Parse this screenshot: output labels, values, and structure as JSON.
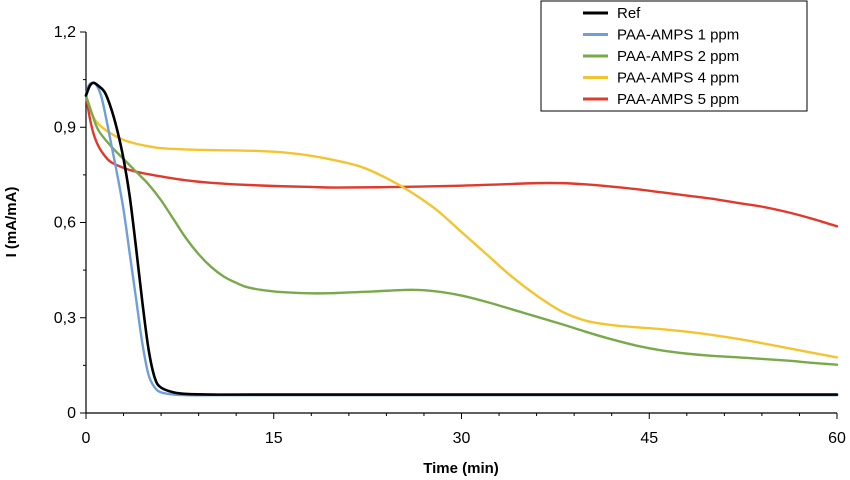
{
  "chart_data": {
    "type": "line",
    "title": "",
    "xlabel": "Time (min)",
    "ylabel": "I (mA/mA)",
    "xlim": [
      0,
      60
    ],
    "ylim": [
      0,
      1.2
    ],
    "x_ticks": [
      0,
      15,
      30,
      45,
      60
    ],
    "x_tick_labels": [
      "0",
      "15",
      "30",
      "45",
      "60"
    ],
    "y_ticks": [
      0,
      0.3,
      0.6,
      0.9,
      1.2
    ],
    "y_tick_labels": [
      "0",
      "0,3",
      "0,6",
      "0,9",
      "1,2"
    ],
    "grid": false,
    "legend_position": "top-right",
    "series": [
      {
        "name": "Ref",
        "color": "#000000",
        "points": [
          [
            0,
            1.0
          ],
          [
            0.3,
            1.03
          ],
          [
            0.6,
            1.04
          ],
          [
            1,
            1.03
          ],
          [
            1.5,
            1.01
          ],
          [
            2,
            0.96
          ],
          [
            2.5,
            0.89
          ],
          [
            3,
            0.8
          ],
          [
            3.5,
            0.68
          ],
          [
            4,
            0.52
          ],
          [
            4.5,
            0.35
          ],
          [
            5,
            0.2
          ],
          [
            5.5,
            0.11
          ],
          [
            6,
            0.08
          ],
          [
            7,
            0.065
          ],
          [
            8,
            0.06
          ],
          [
            10,
            0.058
          ],
          [
            15,
            0.058
          ],
          [
            30,
            0.058
          ],
          [
            45,
            0.058
          ],
          [
            60,
            0.058
          ]
        ]
      },
      {
        "name": "PAA-AMPS 1 ppm",
        "color": "#6f9fd8",
        "points": [
          [
            0,
            1.0
          ],
          [
            0.2,
            1.03
          ],
          [
            0.5,
            1.04
          ],
          [
            0.8,
            1.035
          ],
          [
            1.2,
            1.0
          ],
          [
            1.6,
            0.93
          ],
          [
            2,
            0.85
          ],
          [
            2.5,
            0.75
          ],
          [
            3,
            0.64
          ],
          [
            3.5,
            0.5
          ],
          [
            4,
            0.36
          ],
          [
            4.5,
            0.22
          ],
          [
            5,
            0.12
          ],
          [
            5.5,
            0.08
          ],
          [
            6,
            0.065
          ],
          [
            7,
            0.058
          ],
          [
            8,
            0.056
          ],
          [
            10,
            0.056
          ],
          [
            15,
            0.056
          ],
          [
            30,
            0.056
          ],
          [
            45,
            0.056
          ],
          [
            60,
            0.056
          ]
        ]
      },
      {
        "name": "PAA-AMPS 2 ppm",
        "color": "#78a94a",
        "points": [
          [
            0,
            1.0
          ],
          [
            0.5,
            0.94
          ],
          [
            1,
            0.89
          ],
          [
            2,
            0.84
          ],
          [
            3,
            0.8
          ],
          [
            4,
            0.76
          ],
          [
            5,
            0.72
          ],
          [
            6,
            0.67
          ],
          [
            7,
            0.61
          ],
          [
            8,
            0.55
          ],
          [
            9,
            0.5
          ],
          [
            10,
            0.46
          ],
          [
            11,
            0.43
          ],
          [
            12,
            0.41
          ],
          [
            13,
            0.395
          ],
          [
            15,
            0.383
          ],
          [
            18,
            0.377
          ],
          [
            20,
            0.378
          ],
          [
            23,
            0.383
          ],
          [
            26,
            0.388
          ],
          [
            28,
            0.383
          ],
          [
            30,
            0.37
          ],
          [
            32,
            0.35
          ],
          [
            35,
            0.315
          ],
          [
            38,
            0.28
          ],
          [
            40,
            0.255
          ],
          [
            42,
            0.232
          ],
          [
            44,
            0.212
          ],
          [
            46,
            0.197
          ],
          [
            48,
            0.187
          ],
          [
            50,
            0.18
          ],
          [
            53,
            0.173
          ],
          [
            56,
            0.165
          ],
          [
            58,
            0.158
          ],
          [
            60,
            0.152
          ]
        ]
      },
      {
        "name": "PAA-AMPS 4 ppm",
        "color": "#f4c430",
        "points": [
          [
            0,
            1.0
          ],
          [
            0.5,
            0.94
          ],
          [
            1,
            0.91
          ],
          [
            2,
            0.88
          ],
          [
            3,
            0.86
          ],
          [
            4,
            0.848
          ],
          [
            5,
            0.84
          ],
          [
            6,
            0.834
          ],
          [
            8,
            0.83
          ],
          [
            10,
            0.828
          ],
          [
            12,
            0.827
          ],
          [
            14,
            0.825
          ],
          [
            16,
            0.82
          ],
          [
            18,
            0.81
          ],
          [
            20,
            0.795
          ],
          [
            22,
            0.775
          ],
          [
            24,
            0.74
          ],
          [
            26,
            0.695
          ],
          [
            28,
            0.64
          ],
          [
            30,
            0.57
          ],
          [
            32,
            0.5
          ],
          [
            34,
            0.43
          ],
          [
            36,
            0.37
          ],
          [
            38,
            0.32
          ],
          [
            40,
            0.29
          ],
          [
            42,
            0.277
          ],
          [
            44,
            0.27
          ],
          [
            46,
            0.264
          ],
          [
            48,
            0.256
          ],
          [
            50,
            0.246
          ],
          [
            52,
            0.234
          ],
          [
            54,
            0.22
          ],
          [
            56,
            0.205
          ],
          [
            58,
            0.19
          ],
          [
            60,
            0.175
          ]
        ]
      },
      {
        "name": "PAA-AMPS 5 ppm",
        "color": "#e03a2c",
        "points": [
          [
            0,
            1.0
          ],
          [
            0.3,
            0.93
          ],
          [
            0.6,
            0.88
          ],
          [
            1,
            0.84
          ],
          [
            1.5,
            0.81
          ],
          [
            2,
            0.79
          ],
          [
            3,
            0.772
          ],
          [
            4,
            0.76
          ],
          [
            5,
            0.752
          ],
          [
            6,
            0.745
          ],
          [
            8,
            0.733
          ],
          [
            10,
            0.725
          ],
          [
            12,
            0.72
          ],
          [
            15,
            0.715
          ],
          [
            18,
            0.712
          ],
          [
            20,
            0.71
          ],
          [
            25,
            0.712
          ],
          [
            30,
            0.716
          ],
          [
            33,
            0.72
          ],
          [
            36,
            0.724
          ],
          [
            38,
            0.724
          ],
          [
            40,
            0.72
          ],
          [
            42,
            0.713
          ],
          [
            44,
            0.705
          ],
          [
            46,
            0.695
          ],
          [
            48,
            0.685
          ],
          [
            50,
            0.675
          ],
          [
            52,
            0.662
          ],
          [
            54,
            0.65
          ],
          [
            56,
            0.633
          ],
          [
            58,
            0.612
          ],
          [
            60,
            0.588
          ]
        ]
      }
    ]
  }
}
